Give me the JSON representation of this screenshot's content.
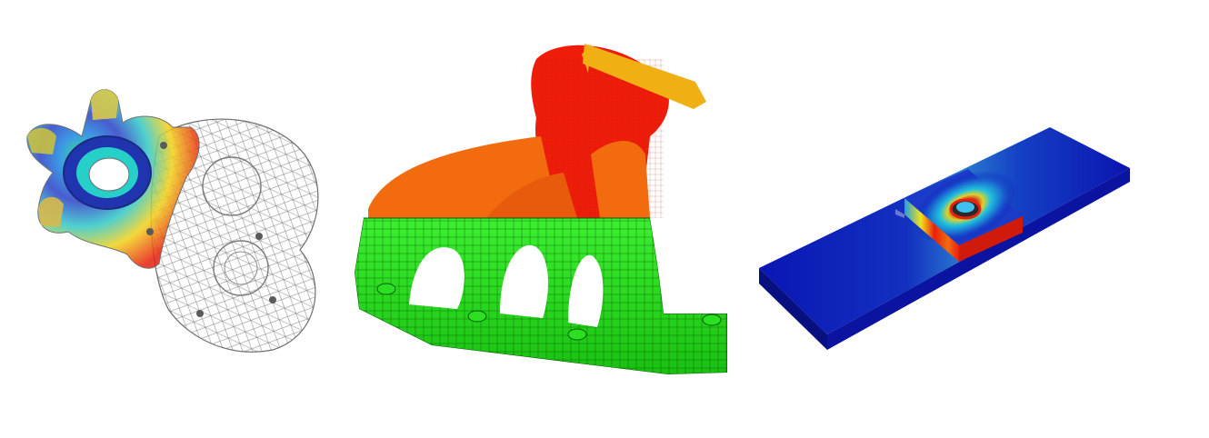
{
  "figure": {
    "panels": [
      {
        "id": "knuckle",
        "subject": "steering-knuckle-fea-mesh"
      },
      {
        "id": "manifold",
        "subject": "exhaust-manifold-fea-mesh"
      },
      {
        "id": "plate",
        "subject": "bolted-plate-stress-contour"
      }
    ]
  },
  "colors": {
    "background": "#ffffff",
    "mesh_green": "#22e01a",
    "mesh_orange": "#f26b0f",
    "mesh_red": "#f01c0a",
    "contour_blue": "#0a16b4",
    "contour_cyan": "#20d0e0",
    "contour_yellow": "#f2e21a",
    "contour_red": "#e8200c",
    "wireframe_gray": "#8a8a8a"
  }
}
